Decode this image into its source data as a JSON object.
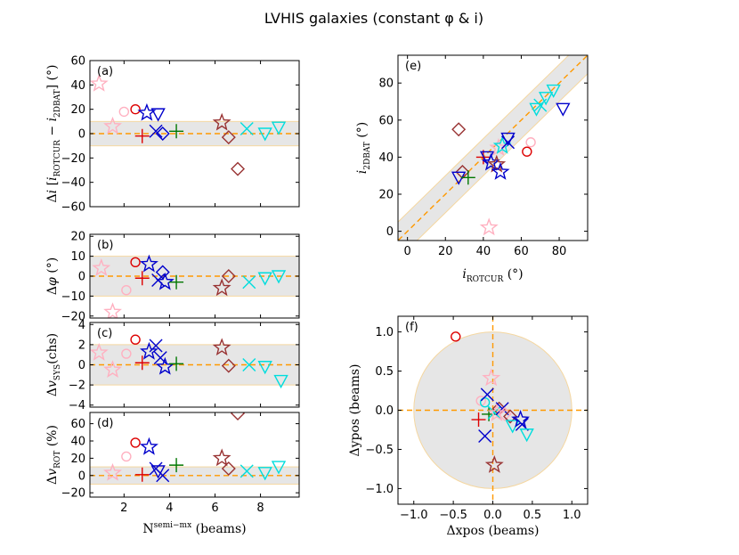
{
  "title": "LVHIS galaxies (constant φ & i)",
  "colors": {
    "band": "#e6e6e6",
    "band_edge": "#f5d7a0",
    "dash": "#ff9900",
    "pink": "#ffb0c0",
    "red": "#dd0000",
    "blue": "#0000cc",
    "green": "#007700",
    "brown": "#993333",
    "cyan": "#00dddd"
  },
  "chart_data": [
    {
      "id": "a",
      "type": "scatter",
      "panel_label": "(a)",
      "ylabel": "Δi [i_ROTCUR − i_2DBAT] (°)",
      "ylabel_parts": [
        "Δ",
        "i",
        " [",
        "i",
        "ROTCUR",
        " − ",
        "i",
        "2DBAT",
        "] (°)"
      ],
      "xlim": [
        0.5,
        9.7
      ],
      "ylim": [
        -60,
        60
      ],
      "yticks": [
        "60",
        "40",
        "20",
        "0",
        "−20",
        "−40",
        "−60"
      ],
      "ytick_values": [
        60,
        40,
        20,
        0,
        -20,
        -40,
        -60
      ],
      "band": [
        -10,
        10
      ],
      "points": [
        {
          "x": 0.9,
          "y": 41,
          "m": "star",
          "c": "pink"
        },
        {
          "x": 1.5,
          "y": 6,
          "m": "star",
          "c": "pink"
        },
        {
          "x": 2.0,
          "y": 18,
          "m": "circle",
          "c": "pink"
        },
        {
          "x": 2.5,
          "y": 20,
          "m": "circle",
          "c": "red"
        },
        {
          "x": 2.8,
          "y": -2,
          "m": "plus",
          "c": "red"
        },
        {
          "x": 3.0,
          "y": 17,
          "m": "star",
          "c": "blue"
        },
        {
          "x": 3.4,
          "y": 2,
          "m": "x",
          "c": "blue"
        },
        {
          "x": 3.5,
          "y": 16,
          "m": "tri",
          "c": "blue"
        },
        {
          "x": 3.7,
          "y": 0,
          "m": "diamond",
          "c": "blue"
        },
        {
          "x": 4.3,
          "y": 2,
          "m": "plus",
          "c": "green"
        },
        {
          "x": 6.3,
          "y": 9,
          "m": "star",
          "c": "brown"
        },
        {
          "x": 6.6,
          "y": -3,
          "m": "diamond",
          "c": "brown"
        },
        {
          "x": 7.0,
          "y": -29,
          "m": "diamond",
          "c": "brown"
        },
        {
          "x": 7.4,
          "y": 4,
          "m": "x",
          "c": "cyan"
        },
        {
          "x": 8.2,
          "y": 0,
          "m": "tri",
          "c": "cyan"
        },
        {
          "x": 8.8,
          "y": 5,
          "m": "tri",
          "c": "cyan"
        }
      ]
    },
    {
      "id": "b",
      "type": "scatter",
      "panel_label": "(b)",
      "ylabel": "Δφ (°)",
      "ylabel_parts": [
        "Δ",
        "φ",
        "",
        "",
        "",
        " (°)",
        "",
        "",
        ""
      ],
      "xlim": [
        0.5,
        9.7
      ],
      "ylim": [
        -21,
        21
      ],
      "yticks": [
        "20",
        "10",
        "0",
        "−10",
        "−20"
      ],
      "ytick_values": [
        20,
        10,
        0,
        -10,
        -20
      ],
      "band": [
        -10,
        10
      ],
      "points": [
        {
          "x": 1.0,
          "y": 4,
          "m": "star",
          "c": "pink"
        },
        {
          "x": 1.5,
          "y": -18,
          "m": "star",
          "c": "pink"
        },
        {
          "x": 2.1,
          "y": -7,
          "m": "circle",
          "c": "pink"
        },
        {
          "x": 2.5,
          "y": 7,
          "m": "circle",
          "c": "red"
        },
        {
          "x": 2.8,
          "y": -1,
          "m": "plus",
          "c": "red"
        },
        {
          "x": 3.1,
          "y": 6,
          "m": "star",
          "c": "blue"
        },
        {
          "x": 3.5,
          "y": -2,
          "m": "x",
          "c": "blue"
        },
        {
          "x": 3.7,
          "y": 2,
          "m": "diamond",
          "c": "blue"
        },
        {
          "x": 3.8,
          "y": -3,
          "m": "star",
          "c": "blue"
        },
        {
          "x": 4.3,
          "y": -3,
          "m": "plus",
          "c": "green"
        },
        {
          "x": 6.3,
          "y": -6,
          "m": "star",
          "c": "brown"
        },
        {
          "x": 6.6,
          "y": 0,
          "m": "diamond",
          "c": "brown"
        },
        {
          "x": 7.5,
          "y": -3,
          "m": "x",
          "c": "cyan"
        },
        {
          "x": 8.2,
          "y": -1,
          "m": "tri",
          "c": "cyan"
        },
        {
          "x": 8.8,
          "y": 0,
          "m": "tri",
          "c": "cyan"
        }
      ]
    },
    {
      "id": "c",
      "type": "scatter",
      "panel_label": "(c)",
      "ylabel": "Δv_SYS(chs)",
      "ylabel_parts": [
        "Δ",
        "v",
        "",
        "",
        "SYS",
        "(chs)",
        "",
        "",
        ""
      ],
      "xlim": [
        0.5,
        9.7
      ],
      "ylim": [
        -4.2,
        4.2
      ],
      "yticks": [
        "4",
        "2",
        "0",
        "−2",
        "−4"
      ],
      "ytick_values": [
        4,
        2,
        0,
        -2,
        -4
      ],
      "band": [
        -2,
        2
      ],
      "points": [
        {
          "x": 0.9,
          "y": 1.2,
          "m": "star",
          "c": "pink"
        },
        {
          "x": 1.5,
          "y": -0.5,
          "m": "star",
          "c": "pink"
        },
        {
          "x": 2.1,
          "y": 1.1,
          "m": "circle",
          "c": "pink"
        },
        {
          "x": 2.5,
          "y": 2.5,
          "m": "circle",
          "c": "red"
        },
        {
          "x": 2.8,
          "y": 0.2,
          "m": "plus",
          "c": "red"
        },
        {
          "x": 3.1,
          "y": 1.3,
          "m": "star",
          "c": "blue"
        },
        {
          "x": 3.4,
          "y": 1.9,
          "m": "x",
          "c": "blue"
        },
        {
          "x": 3.6,
          "y": 0.7,
          "m": "x",
          "c": "blue"
        },
        {
          "x": 3.8,
          "y": -0.2,
          "m": "star",
          "c": "blue"
        },
        {
          "x": 4.3,
          "y": 0.1,
          "m": "plus",
          "c": "green"
        },
        {
          "x": 6.3,
          "y": 1.7,
          "m": "star",
          "c": "brown"
        },
        {
          "x": 6.6,
          "y": -0.1,
          "m": "diamond",
          "c": "brown"
        },
        {
          "x": 7.5,
          "y": 0.0,
          "m": "x",
          "c": "cyan"
        },
        {
          "x": 8.2,
          "y": -0.2,
          "m": "tri",
          "c": "cyan"
        },
        {
          "x": 8.9,
          "y": -1.6,
          "m": "tri",
          "c": "cyan"
        }
      ]
    },
    {
      "id": "d",
      "type": "scatter",
      "panel_label": "(d)",
      "ylabel": "Δv_ROT (%)",
      "ylabel_parts": [
        "Δ",
        "v",
        "",
        "",
        "ROT",
        " (%)",
        "",
        "",
        ""
      ],
      "xlim": [
        0.5,
        9.7
      ],
      "ylim": [
        -25,
        73
      ],
      "yticks": [
        "60",
        "40",
        "20",
        "0",
        "−20"
      ],
      "ytick_values": [
        60,
        40,
        20,
        0,
        -20
      ],
      "band": [
        -10,
        10
      ],
      "xticks": [
        "2",
        "4",
        "6",
        "8"
      ],
      "xtick_values": [
        2,
        4,
        6,
        8
      ],
      "xlabel": "N^semi−mx (beams)",
      "points": [
        {
          "x": 1.5,
          "y": 3,
          "m": "star",
          "c": "pink"
        },
        {
          "x": 2.1,
          "y": 22,
          "m": "circle",
          "c": "pink"
        },
        {
          "x": 2.5,
          "y": 38,
          "m": "circle",
          "c": "red"
        },
        {
          "x": 2.8,
          "y": 1,
          "m": "plus",
          "c": "red"
        },
        {
          "x": 3.1,
          "y": 33,
          "m": "star",
          "c": "blue"
        },
        {
          "x": 3.4,
          "y": 8,
          "m": "x",
          "c": "blue"
        },
        {
          "x": 3.5,
          "y": 5,
          "m": "tri",
          "c": "blue"
        },
        {
          "x": 3.7,
          "y": 0,
          "m": "x",
          "c": "blue"
        },
        {
          "x": 4.3,
          "y": 12,
          "m": "plus",
          "c": "green"
        },
        {
          "x": 6.3,
          "y": 20,
          "m": "star",
          "c": "brown"
        },
        {
          "x": 6.6,
          "y": 8,
          "m": "diamond",
          "c": "brown"
        },
        {
          "x": 7.0,
          "y": 72,
          "m": "diamond",
          "c": "brown"
        },
        {
          "x": 7.4,
          "y": 5,
          "m": "x",
          "c": "cyan"
        },
        {
          "x": 8.2,
          "y": 3,
          "m": "tri",
          "c": "cyan"
        },
        {
          "x": 8.8,
          "y": 10,
          "m": "tri",
          "c": "cyan"
        }
      ]
    },
    {
      "id": "e",
      "type": "scatter",
      "panel_label": "(e)",
      "xlabel": "i_ROTCUR (°)",
      "ylabel": "i_2DBAT (°)",
      "xlim": [
        -5,
        95
      ],
      "ylim": [
        -5,
        95
      ],
      "xticks": [
        "0",
        "20",
        "40",
        "60",
        "80"
      ],
      "xtick_values": [
        0,
        20,
        40,
        60,
        80
      ],
      "yticks": [
        "80",
        "60",
        "40",
        "20",
        "0"
      ],
      "ytick_values": [
        80,
        60,
        40,
        20,
        0
      ],
      "band_offset": 10,
      "points": [
        {
          "x": 43,
          "y": 2,
          "m": "star",
          "c": "pink"
        },
        {
          "x": 65,
          "y": 48,
          "m": "circle",
          "c": "pink"
        },
        {
          "x": 63,
          "y": 43,
          "m": "circle",
          "c": "red"
        },
        {
          "x": 27,
          "y": 55,
          "m": "diamond",
          "c": "brown"
        },
        {
          "x": 29,
          "y": 32,
          "m": "diamond",
          "c": "brown"
        },
        {
          "x": 27,
          "y": 29,
          "m": "tri",
          "c": "blue"
        },
        {
          "x": 32,
          "y": 29,
          "m": "plus",
          "c": "green"
        },
        {
          "x": 40,
          "y": 40,
          "m": "plus",
          "c": "red"
        },
        {
          "x": 42,
          "y": 40,
          "m": "tri",
          "c": "blue"
        },
        {
          "x": 44,
          "y": 37,
          "m": "star",
          "c": "blue"
        },
        {
          "x": 47,
          "y": 36,
          "m": "star",
          "c": "brown"
        },
        {
          "x": 48,
          "y": 45,
          "m": "star",
          "c": "pink"
        },
        {
          "x": 50,
          "y": 46,
          "m": "star",
          "c": "cyan"
        },
        {
          "x": 49,
          "y": 32,
          "m": "star",
          "c": "blue"
        },
        {
          "x": 53,
          "y": 48,
          "m": "x",
          "c": "blue"
        },
        {
          "x": 53,
          "y": 50,
          "m": "tri",
          "c": "blue"
        },
        {
          "x": 68,
          "y": 66,
          "m": "tri",
          "c": "cyan"
        },
        {
          "x": 70,
          "y": 68,
          "m": "x",
          "c": "cyan"
        },
        {
          "x": 73,
          "y": 72,
          "m": "tri",
          "c": "cyan"
        },
        {
          "x": 77,
          "y": 76,
          "m": "tri",
          "c": "cyan"
        },
        {
          "x": 82,
          "y": 66,
          "m": "tri",
          "c": "blue"
        }
      ]
    },
    {
      "id": "f",
      "type": "scatter",
      "panel_label": "(f)",
      "xlabel": "Δxpos (beams)",
      "ylabel": "Δypos (beams)",
      "xlim": [
        -1.2,
        1.2
      ],
      "ylim": [
        -1.2,
        1.2
      ],
      "xticks": [
        "−1.0",
        "−0.5",
        "0.0",
        "0.5",
        "1.0"
      ],
      "xtick_values": [
        -1,
        -0.5,
        0,
        0.5,
        1
      ],
      "yticks": [
        "1.0",
        "0.5",
        "0.0",
        "−0.5",
        "−1.0"
      ],
      "ytick_values": [
        1,
        0.5,
        0,
        -0.5,
        -1
      ],
      "circle_radius": 1.0,
      "points": [
        {
          "x": -0.47,
          "y": 0.94,
          "m": "circle",
          "c": "red"
        },
        {
          "x": -0.02,
          "y": 0.41,
          "m": "star",
          "c": "pink"
        },
        {
          "x": -0.15,
          "y": 0.12,
          "m": "circle",
          "c": "pink"
        },
        {
          "x": -0.1,
          "y": 0.1,
          "m": "circle",
          "c": "cyan"
        },
        {
          "x": -0.07,
          "y": 0.2,
          "m": "x",
          "c": "blue"
        },
        {
          "x": -0.1,
          "y": -0.33,
          "m": "x",
          "c": "blue"
        },
        {
          "x": -0.18,
          "y": -0.12,
          "m": "plus",
          "c": "red"
        },
        {
          "x": -0.05,
          "y": -0.05,
          "m": "plus",
          "c": "green"
        },
        {
          "x": 0.02,
          "y": -0.03,
          "m": "x",
          "c": "cyan"
        },
        {
          "x": 0.08,
          "y": 0.02,
          "m": "diamond",
          "c": "brown"
        },
        {
          "x": 0.12,
          "y": 0.02,
          "m": "x",
          "c": "blue"
        },
        {
          "x": 0.05,
          "y": -0.04,
          "m": "star",
          "c": "pink"
        },
        {
          "x": 0.15,
          "y": -0.05,
          "m": "diamond",
          "c": "pink"
        },
        {
          "x": 0.22,
          "y": -0.08,
          "m": "diamond",
          "c": "brown"
        },
        {
          "x": 0.25,
          "y": -0.2,
          "m": "tri",
          "c": "cyan"
        },
        {
          "x": 0.35,
          "y": -0.12,
          "m": "star",
          "c": "blue"
        },
        {
          "x": 0.37,
          "y": -0.18,
          "m": "x",
          "c": "blue"
        },
        {
          "x": 0.43,
          "y": -0.31,
          "m": "tri",
          "c": "cyan"
        },
        {
          "x": 0.02,
          "y": -0.7,
          "m": "star",
          "c": "brown"
        }
      ]
    }
  ]
}
